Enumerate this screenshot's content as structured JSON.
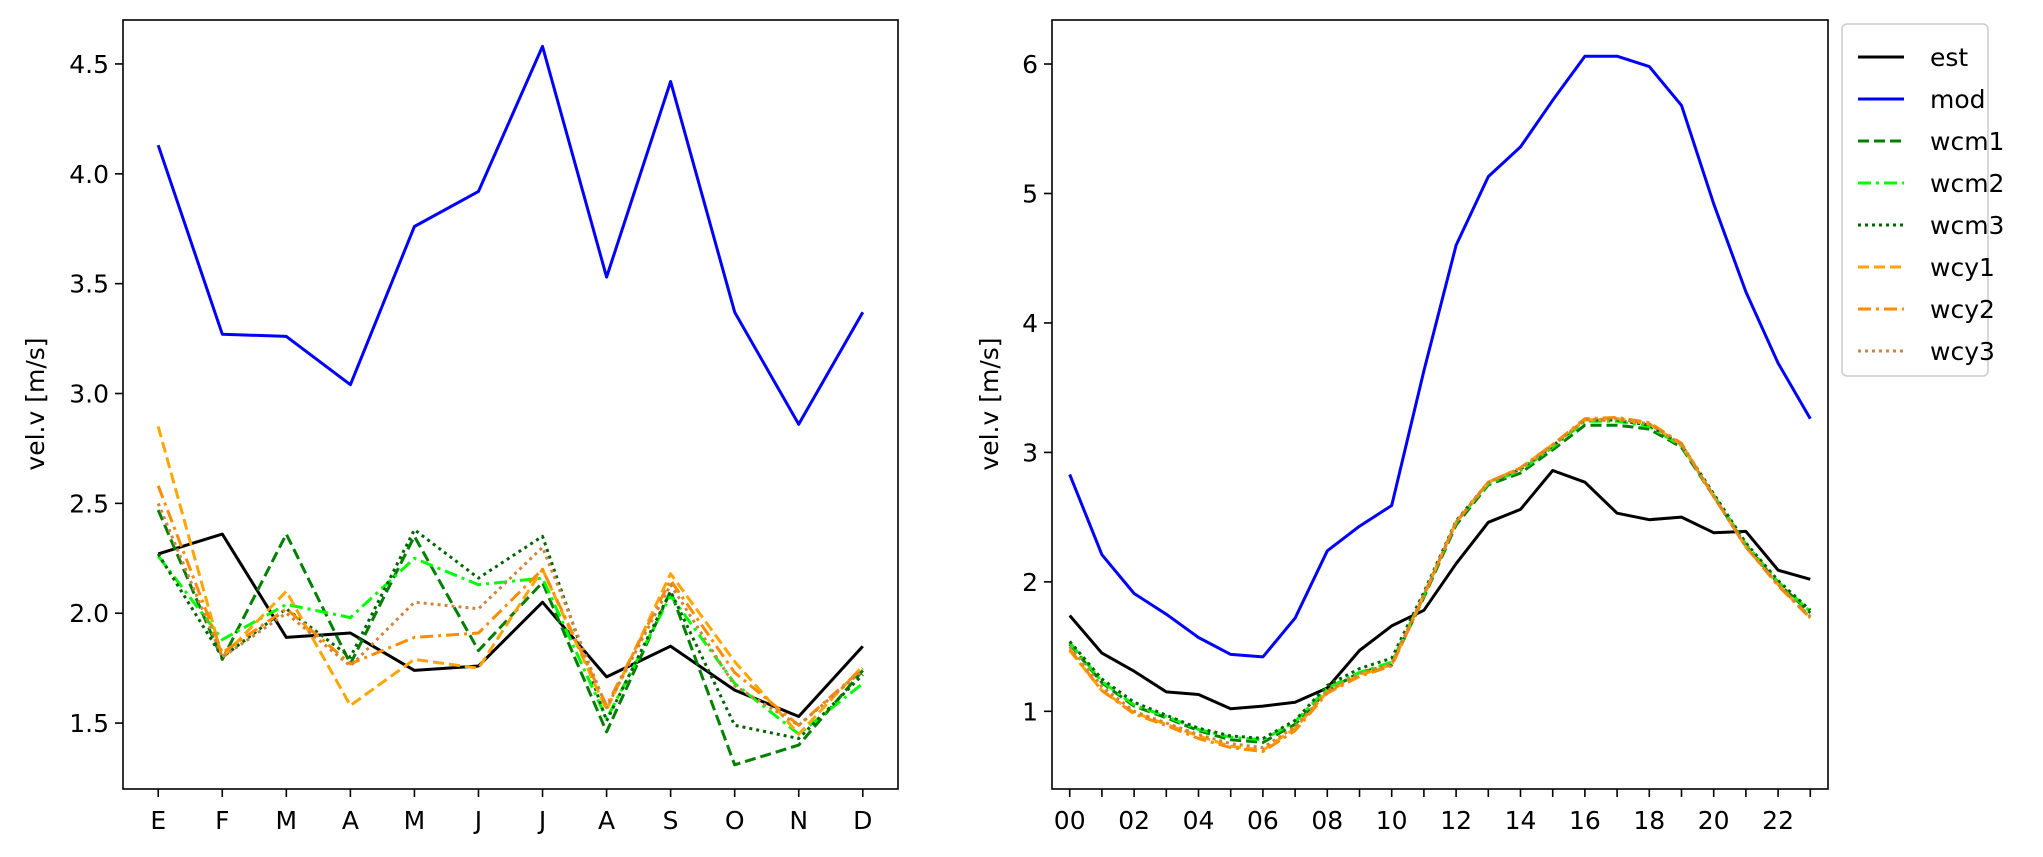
{
  "chart_data": [
    {
      "type": "line",
      "title": "",
      "xlabel": "",
      "ylabel": "vel.v [m/s]",
      "categories": [
        "E",
        "F",
        "M",
        "A",
        "M",
        "J",
        "J",
        "A",
        "S",
        "O",
        "N",
        "D"
      ],
      "ylim": [
        1.2,
        4.7
      ],
      "yticks": [
        1.5,
        2.0,
        2.5,
        3.0,
        3.5,
        4.0,
        4.5
      ],
      "ytick_labels": [
        "1.5",
        "2.0",
        "2.5",
        "3.0",
        "3.5",
        "4.0",
        "4.5"
      ],
      "grid": false,
      "series": [
        {
          "name": "est",
          "color": "#000000",
          "dash": "solid",
          "values": [
            2.27,
            2.36,
            1.89,
            1.91,
            1.74,
            1.76,
            2.05,
            1.71,
            1.85,
            1.65,
            1.53,
            1.85
          ]
        },
        {
          "name": "mod",
          "color": "#0000ff",
          "dash": "solid",
          "values": [
            4.13,
            3.27,
            3.26,
            3.04,
            3.76,
            3.92,
            4.58,
            3.53,
            4.42,
            3.37,
            2.86,
            3.37
          ]
        },
        {
          "name": "wcm1",
          "color": "#008000",
          "dash": "dashed",
          "values": [
            2.47,
            1.79,
            2.36,
            1.77,
            2.35,
            1.83,
            2.14,
            1.46,
            2.1,
            1.31,
            1.4,
            1.74
          ]
        },
        {
          "name": "wcm2",
          "color": "#00ff00",
          "dash": "dashdot",
          "values": [
            2.26,
            1.88,
            2.04,
            1.98,
            2.25,
            2.13,
            2.16,
            1.52,
            2.08,
            1.68,
            1.45,
            1.68
          ]
        },
        {
          "name": "wcm3",
          "color": "#006400",
          "dash": "dotted",
          "values": [
            2.27,
            1.8,
            2.02,
            1.8,
            2.38,
            2.16,
            2.35,
            1.51,
            2.1,
            1.49,
            1.43,
            1.72
          ]
        },
        {
          "name": "wcy1",
          "color": "#ffa500",
          "dash": "dashed",
          "values": [
            2.85,
            1.8,
            2.1,
            1.58,
            1.79,
            1.75,
            2.2,
            1.56,
            2.18,
            1.78,
            1.45,
            1.76
          ]
        },
        {
          "name": "wcy2",
          "color": "#ff8c00",
          "dash": "dashdot",
          "values": [
            2.58,
            1.82,
            2.02,
            1.77,
            1.89,
            1.91,
            2.2,
            1.58,
            2.15,
            1.73,
            1.49,
            1.75
          ]
        },
        {
          "name": "wcy3",
          "color": "#cd853f",
          "dash": "dotted",
          "values": [
            2.5,
            1.8,
            2.0,
            1.76,
            2.05,
            2.02,
            2.3,
            1.57,
            2.13,
            1.67,
            1.49,
            1.74
          ]
        }
      ]
    },
    {
      "type": "line",
      "title": "",
      "xlabel": "",
      "ylabel": "vel.v [m/s]",
      "x": [
        0,
        1,
        2,
        3,
        4,
        5,
        6,
        7,
        8,
        9,
        10,
        11,
        12,
        13,
        14,
        15,
        16,
        17,
        18,
        19,
        20,
        21,
        22,
        23
      ],
      "xlim": [
        -0.55,
        23.55
      ],
      "xtick_labels": [
        "00",
        "",
        "02",
        "",
        "04",
        "",
        "06",
        "",
        "08",
        "",
        "10",
        "",
        "12",
        "",
        "14",
        "",
        "16",
        "",
        "18",
        "",
        "20",
        "",
        "22",
        ""
      ],
      "ylim": [
        0.4,
        6.34
      ],
      "yticks": [
        1,
        2,
        3,
        4,
        5,
        6
      ],
      "ytick_labels": [
        "1",
        "2",
        "3",
        "4",
        "5",
        "6"
      ],
      "grid": false,
      "legend_position": "outside-right-top",
      "series": [
        {
          "name": "est",
          "color": "#000000",
          "dash": "solid",
          "values": [
            1.74,
            1.45,
            1.31,
            1.15,
            1.13,
            1.02,
            1.04,
            1.07,
            1.18,
            1.47,
            1.66,
            1.78,
            2.14,
            2.46,
            2.56,
            2.86,
            2.77,
            2.53,
            2.48,
            2.5,
            2.38,
            2.39,
            2.09,
            2.02
          ]
        },
        {
          "name": "mod",
          "color": "#0000ff",
          "dash": "solid",
          "values": [
            2.83,
            2.21,
            1.91,
            1.75,
            1.57,
            1.44,
            1.42,
            1.72,
            2.24,
            2.43,
            2.59,
            3.63,
            4.6,
            5.13,
            5.36,
            5.72,
            6.06,
            6.06,
            5.98,
            5.68,
            4.92,
            4.24,
            3.69,
            3.26
          ]
        },
        {
          "name": "wcm1",
          "color": "#008000",
          "dash": "dashed",
          "values": [
            1.52,
            1.22,
            1.04,
            0.95,
            0.85,
            0.78,
            0.76,
            0.9,
            1.16,
            1.3,
            1.36,
            1.88,
            2.44,
            2.75,
            2.84,
            3.02,
            3.21,
            3.21,
            3.18,
            3.04,
            2.66,
            2.28,
            1.99,
            1.76
          ]
        },
        {
          "name": "wcm2",
          "color": "#00ff00",
          "dash": "dashdot",
          "values": [
            1.53,
            1.23,
            1.05,
            0.96,
            0.86,
            0.8,
            0.78,
            0.92,
            1.18,
            1.3,
            1.38,
            1.9,
            2.46,
            2.76,
            2.86,
            3.04,
            3.24,
            3.24,
            3.2,
            3.05,
            2.67,
            2.29,
            2.0,
            1.77
          ]
        },
        {
          "name": "wcm3",
          "color": "#006400",
          "dash": "dotted",
          "values": [
            1.54,
            1.25,
            1.07,
            0.97,
            0.87,
            0.81,
            0.79,
            0.93,
            1.2,
            1.33,
            1.41,
            1.92,
            2.47,
            2.77,
            2.87,
            3.05,
            3.25,
            3.25,
            3.21,
            3.06,
            2.68,
            2.3,
            2.01,
            1.78
          ]
        },
        {
          "name": "wcy1",
          "color": "#ffa500",
          "dash": "dashed",
          "values": [
            1.47,
            1.16,
            0.99,
            0.9,
            0.81,
            0.73,
            0.7,
            0.87,
            1.15,
            1.28,
            1.36,
            1.9,
            2.46,
            2.77,
            2.88,
            3.06,
            3.25,
            3.26,
            3.22,
            3.06,
            2.66,
            2.27,
            1.98,
            1.72
          ]
        },
        {
          "name": "wcy2",
          "color": "#ff8c00",
          "dash": "dashdot",
          "values": [
            1.48,
            1.16,
            0.98,
            0.89,
            0.79,
            0.72,
            0.69,
            0.85,
            1.14,
            1.27,
            1.35,
            1.89,
            2.46,
            2.77,
            2.88,
            3.06,
            3.26,
            3.27,
            3.23,
            3.07,
            2.66,
            2.27,
            1.97,
            1.72
          ]
        },
        {
          "name": "wcy3",
          "color": "#cd853f",
          "dash": "dotted",
          "values": [
            1.5,
            1.19,
            1.0,
            0.91,
            0.82,
            0.75,
            0.72,
            0.88,
            1.16,
            1.29,
            1.37,
            1.9,
            2.46,
            2.77,
            2.87,
            3.05,
            3.25,
            3.26,
            3.22,
            3.06,
            2.66,
            2.27,
            1.98,
            1.73
          ]
        }
      ]
    }
  ]
}
